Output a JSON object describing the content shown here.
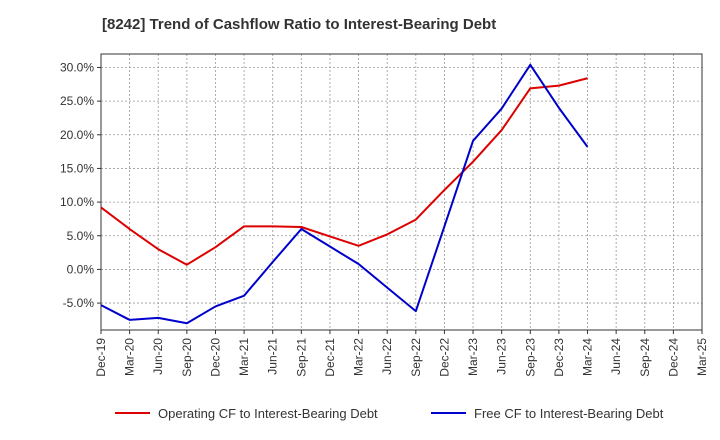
{
  "chart_data": {
    "type": "line",
    "title": "[8242]  Trend of Cashflow Ratio to Interest-Bearing Debt",
    "xlabel": "",
    "ylabel": "",
    "categories": [
      "Dec-19",
      "Mar-20",
      "Jun-20",
      "Sep-20",
      "Dec-20",
      "Mar-21",
      "Jun-21",
      "Sep-21",
      "Dec-21",
      "Mar-22",
      "Jun-22",
      "Sep-22",
      "Dec-22",
      "Mar-23",
      "Jun-23",
      "Sep-23",
      "Dec-23",
      "Mar-24",
      "Jun-24",
      "Sep-24",
      "Dec-24",
      "Mar-25"
    ],
    "y_ticks": [
      -5,
      0,
      5,
      10,
      15,
      20,
      25,
      30
    ],
    "y_tick_labels": [
      "-5.0%",
      "0.0%",
      "5.0%",
      "10.0%",
      "15.0%",
      "20.0%",
      "25.0%",
      "30.0%"
    ],
    "ylim": [
      -9,
      32
    ],
    "grid": true,
    "legend_position": "bottom",
    "series": [
      {
        "name": "Operating CF to Interest-Bearing Debt",
        "color": "#dd0000",
        "values": [
          9.2,
          6.0,
          3.0,
          0.7,
          3.3,
          6.4,
          6.4,
          6.3,
          4.9,
          3.5,
          5.2,
          7.4,
          11.8,
          16.0,
          20.7,
          26.9,
          27.3,
          28.4,
          null,
          null,
          null,
          null
        ]
      },
      {
        "name": "Free CF to Interest-Bearing Debt",
        "color": "#0000cc",
        "values": [
          -5.3,
          -7.5,
          -7.2,
          -8.0,
          -5.5,
          -3.9,
          1.1,
          6.0,
          3.4,
          0.8,
          -2.7,
          -6.2,
          6.4,
          19.1,
          23.9,
          30.4,
          24.0,
          18.2,
          null,
          null,
          null,
          null
        ]
      }
    ]
  }
}
